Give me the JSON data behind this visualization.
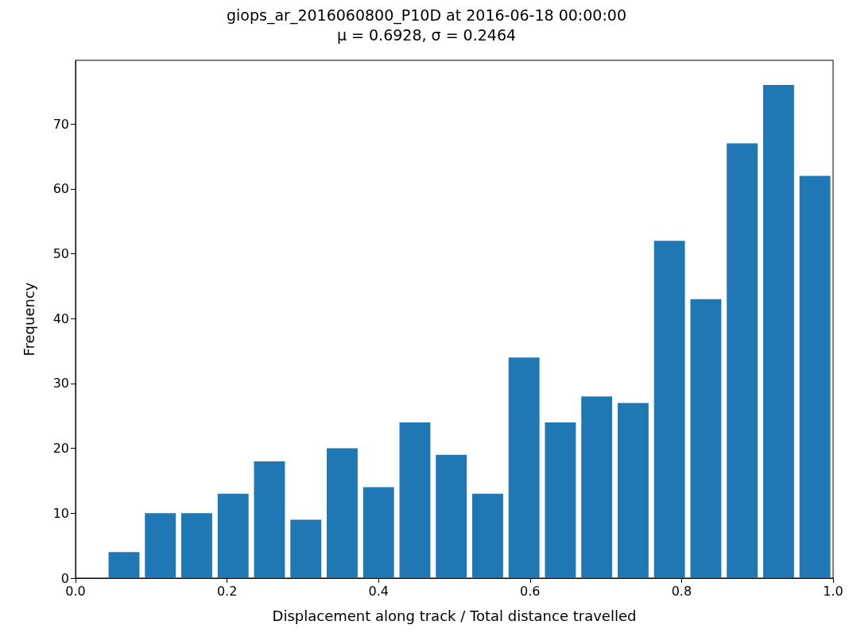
{
  "chart_data": {
    "type": "histogram",
    "title": "giops_ar_2016060800_P10D at 2016-06-18 00:00:00",
    "subtitle": "μ = 0.6928, σ = 0.2464",
    "xlabel": "Displacement along track / Total distance travelled",
    "ylabel": "Frequency",
    "bins": [
      0.04,
      0.088,
      0.136,
      0.184,
      0.232,
      0.28,
      0.328,
      0.376,
      0.424,
      0.472,
      0.52,
      0.568,
      0.616,
      0.664,
      0.712,
      0.76,
      0.808,
      0.856,
      0.904,
      0.952,
      1.0
    ],
    "values": [
      4,
      10,
      10,
      13,
      18,
      9,
      20,
      14,
      24,
      19,
      13,
      34,
      24,
      28,
      27,
      52,
      43,
      67,
      76,
      62
    ],
    "color": "#1f77b4",
    "xlim": [
      0,
      1
    ],
    "ylim": [
      0,
      79.8
    ],
    "xticks": [
      {
        "value": 0,
        "label": "0.0"
      },
      {
        "value": 0.2,
        "label": "0.2"
      },
      {
        "value": 0.4,
        "label": "0.4"
      },
      {
        "value": 0.6,
        "label": "0.6"
      },
      {
        "value": 0.8,
        "label": "0.8"
      },
      {
        "value": 1,
        "label": "1.0"
      }
    ],
    "yticks": [
      0,
      10,
      20,
      30,
      40,
      50,
      60,
      70
    ],
    "grid": false
  }
}
